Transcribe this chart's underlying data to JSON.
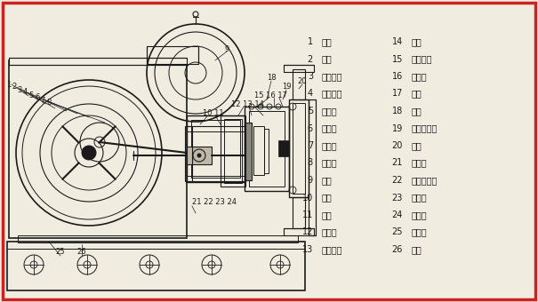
{
  "bg_color": "#f0ece0",
  "border_color": "#cc2222",
  "line_color": "#1a1a1a",
  "border_lw": 2.5,
  "legend_col1": [
    [
      "1",
      "箱盖"
    ],
    [
      "2",
      "连杆"
    ],
    [
      "3",
      "连杆铜套"
    ],
    [
      "4",
      "连杆罗丝"
    ],
    [
      "5",
      "偏心轮"
    ],
    [
      "6",
      "加油孔"
    ],
    [
      "7",
      "齿轮油"
    ],
    [
      "8",
      "皮带轮"
    ],
    [
      "9",
      "电机"
    ],
    [
      "10",
      "箱体"
    ],
    [
      "11",
      "泵轴"
    ],
    [
      "12",
      "垫料架"
    ],
    [
      "13",
      "垫料压盖"
    ]
  ],
  "legend_col2": [
    [
      "14",
      "垫料"
    ],
    [
      "15",
      "单向球阀"
    ],
    [
      "16",
      "活塞环"
    ],
    [
      "17",
      "活塞"
    ],
    [
      "18",
      "泵体"
    ],
    [
      "19",
      "单向球阀座"
    ],
    [
      "20",
      "泵盖"
    ],
    [
      "21",
      "连杆销"
    ],
    [
      "22",
      "连杆小铜套"
    ],
    [
      "23",
      "十字头"
    ],
    [
      "24",
      "往复缸"
    ],
    [
      "25",
      "方油孔"
    ],
    [
      "26",
      "底盘"
    ]
  ]
}
